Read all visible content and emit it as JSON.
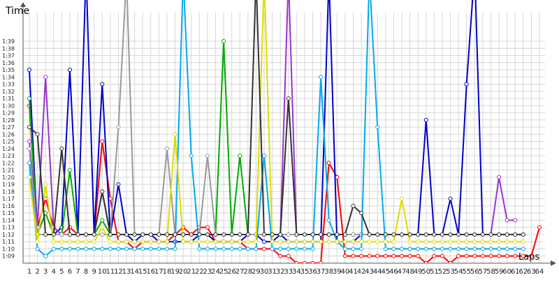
{
  "chart_data": {
    "type": "line",
    "title": "",
    "ylabel": "Time",
    "xlabel": "Laps",
    "grid": true,
    "y_axis": {
      "unit": "lap time (m:ss)",
      "range_seconds": [
        68,
        103
      ],
      "tick_labels": [
        "1:09",
        "1:10",
        "1:11",
        "1:12",
        "1:13",
        "1:14",
        "1:15",
        "1:16",
        "1:17",
        "1:18",
        "1:19",
        "1:20",
        "1:21",
        "1:22",
        "1:23",
        "1:24",
        "1:25",
        "1:26",
        "1:27",
        "1:28",
        "1:29",
        "1:30",
        "1:31",
        "1:32",
        "1:33",
        "1:34",
        "1:35",
        "1:36",
        "1:37",
        "1:38",
        "1:39"
      ]
    },
    "x_axis": {
      "range": [
        1,
        64
      ],
      "tick_labels": [
        "1",
        "2",
        "3",
        "4",
        "5",
        "6",
        "7",
        "8",
        "9",
        "10",
        "11",
        "12",
        "13",
        "14",
        "15",
        "16",
        "17",
        "18",
        "19",
        "20",
        "21",
        "22",
        "23",
        "24",
        "25",
        "26",
        "27",
        "28",
        "29",
        "30",
        "31",
        "32",
        "33",
        "34",
        "35",
        "36",
        "37",
        "38",
        "39",
        "40",
        "41",
        "42",
        "43",
        "44",
        "45",
        "46",
        "47",
        "48",
        "49",
        "50",
        "51",
        "52",
        "53",
        "54",
        "55",
        "56",
        "57",
        "58",
        "59",
        "60",
        "61",
        "62",
        "63",
        "64"
      ]
    },
    "series": [
      {
        "color": "#ff0000",
        "x": [
          1,
          2,
          3,
          4,
          5,
          6,
          7,
          8,
          9,
          10,
          11,
          12,
          13,
          14,
          15,
          16,
          17,
          18,
          19,
          20,
          21,
          22,
          23,
          24,
          25,
          26,
          27,
          28,
          29,
          30,
          31,
          32,
          33,
          34,
          35,
          36,
          37,
          38,
          39,
          40,
          41,
          42,
          43,
          44,
          45,
          46,
          47,
          48,
          49,
          50,
          51,
          52,
          53,
          54,
          55,
          56,
          57,
          58,
          59,
          60,
          61,
          62,
          63,
          64
        ],
        "y": [
          90,
          73,
          77,
          73,
          72,
          73,
          72,
          72,
          72,
          85,
          77,
          71,
          71,
          70,
          71,
          71,
          71,
          71,
          72,
          73,
          72,
          73,
          73,
          71,
          71,
          71,
          71,
          70,
          70,
          70,
          70,
          69,
          69,
          68,
          68,
          68,
          68,
          82,
          80,
          69,
          69,
          69,
          69,
          69,
          69,
          69,
          69,
          69,
          69,
          68,
          69,
          69,
          68,
          69,
          69,
          69,
          69,
          69,
          69,
          69,
          69,
          69,
          69,
          73
        ]
      },
      {
        "color": "#0000cc",
        "x": [
          1,
          2,
          3,
          4,
          5,
          6,
          7,
          8,
          9,
          10,
          11,
          12,
          13,
          14,
          15,
          16,
          17,
          18,
          19,
          20,
          21,
          22,
          23,
          24,
          25,
          26,
          27,
          28,
          29,
          30,
          31,
          32,
          33,
          34,
          35,
          36,
          37,
          38,
          39,
          40,
          41,
          42,
          43,
          44,
          45,
          46,
          47,
          48,
          49,
          50,
          51,
          52,
          53,
          54,
          55,
          56,
          57,
          58,
          59,
          60,
          61,
          62
        ],
        "y": [
          95,
          72,
          72,
          72,
          73,
          95,
          72,
          109,
          72,
          93,
          72,
          79,
          72,
          71,
          72,
          72,
          71,
          71,
          71,
          71,
          71,
          72,
          72,
          71,
          71,
          71,
          71,
          72,
          72,
          71,
          71,
          72,
          71,
          71,
          71,
          71,
          71,
          108,
          71,
          71,
          71,
          72,
          72,
          72,
          72,
          72,
          72,
          72,
          72,
          88,
          72,
          72,
          77,
          72,
          93,
          109,
          72,
          72,
          72,
          72,
          72,
          72
        ]
      },
      {
        "color": "#00aa00",
        "x": [
          1,
          2,
          3,
          4,
          5,
          6,
          7,
          8,
          9,
          10,
          11,
          12,
          13,
          14,
          15,
          16,
          17,
          18,
          19,
          20,
          21,
          22,
          23,
          24,
          25,
          26,
          27,
          28,
          29,
          30,
          31,
          32,
          33,
          34,
          35,
          36,
          37,
          38,
          39,
          40,
          41,
          42,
          43,
          44,
          45,
          46,
          47,
          48,
          49,
          50,
          51,
          52,
          53,
          54,
          55,
          56,
          57,
          58,
          59,
          60,
          61,
          62
        ],
        "y": [
          91,
          72,
          75,
          72,
          72,
          81,
          72,
          72,
          72,
          74,
          72,
          72,
          72,
          72,
          72,
          72,
          72,
          72,
          72,
          72,
          72,
          72,
          72,
          72,
          99,
          72,
          83,
          72,
          72,
          72,
          72,
          72,
          72,
          72,
          72,
          72,
          72,
          72,
          72,
          72,
          72,
          72,
          72,
          72,
          72,
          72,
          72,
          72,
          72,
          72,
          72,
          72,
          72,
          72,
          72,
          72,
          72,
          72,
          72,
          72,
          72,
          72
        ]
      },
      {
        "color": "#9933cc",
        "x": [
          1,
          2,
          3,
          4,
          5,
          6,
          7,
          8,
          9,
          10,
          11,
          12,
          13,
          14,
          15,
          16,
          17,
          18,
          19,
          20,
          21,
          22,
          23,
          24,
          25,
          26,
          27,
          28,
          29,
          30,
          31,
          32,
          33,
          34,
          35,
          36,
          37,
          38,
          39,
          40,
          41,
          42,
          43,
          44,
          45,
          46,
          47,
          48,
          49,
          50,
          51,
          52,
          53,
          54,
          55,
          56,
          57,
          58,
          59,
          60,
          61
        ],
        "y": [
          85,
          73,
          94,
          73,
          72,
          72,
          72,
          72,
          72,
          78,
          72,
          72,
          72,
          72,
          72,
          72,
          72,
          72,
          72,
          72,
          72,
          72,
          72,
          72,
          72,
          72,
          72,
          72,
          72,
          72,
          72,
          72,
          108,
          72,
          72,
          72,
          72,
          72,
          72,
          72,
          72,
          72,
          72,
          72,
          72,
          72,
          72,
          72,
          72,
          72,
          72,
          72,
          72,
          72,
          72,
          72,
          72,
          72,
          80,
          74,
          74
        ]
      },
      {
        "color": "#999999",
        "x": [
          1,
          2,
          3,
          4,
          5,
          6,
          7,
          8,
          9,
          10,
          11,
          12,
          13,
          14,
          15,
          16,
          17,
          18,
          19,
          20,
          21,
          22,
          23,
          24,
          25,
          26,
          27,
          28,
          29,
          30,
          31,
          32,
          33,
          34,
          35,
          36,
          37,
          38,
          39,
          40,
          41,
          42,
          43,
          44,
          45,
          46,
          47,
          48,
          49,
          50,
          51,
          52,
          53,
          54,
          55,
          56,
          57,
          58,
          59,
          60,
          61,
          62
        ],
        "y": [
          84,
          72,
          72,
          72,
          72,
          72,
          72,
          72,
          72,
          72,
          72,
          87,
          108,
          72,
          72,
          72,
          72,
          84,
          72,
          72,
          72,
          72,
          83,
          72,
          72,
          72,
          72,
          72,
          72,
          72,
          72,
          72,
          72,
          72,
          72,
          72,
          72,
          72,
          72,
          72,
          72,
          72,
          72,
          72,
          72,
          72,
          72,
          72,
          72,
          72,
          72,
          72,
          72,
          72,
          72,
          72,
          72,
          72,
          72,
          72,
          72,
          72
        ]
      },
      {
        "color": "#00aaee",
        "x": [
          1,
          2,
          3,
          4,
          5,
          6,
          7,
          8,
          9,
          10,
          11,
          12,
          13,
          14,
          15,
          16,
          17,
          18,
          19,
          20,
          21,
          22,
          23,
          24,
          25,
          26,
          27,
          28,
          29,
          30,
          31,
          32,
          33,
          34,
          35,
          36,
          37,
          38,
          39,
          40,
          41,
          42,
          43,
          44,
          45,
          46,
          47,
          48,
          49,
          50,
          51,
          52,
          53,
          54,
          55,
          56,
          57,
          58,
          59,
          60,
          61,
          62
        ],
        "y": [
          82,
          70,
          69,
          70,
          70,
          70,
          70,
          70,
          70,
          70,
          70,
          70,
          70,
          70,
          70,
          70,
          70,
          70,
          70,
          108,
          83,
          70,
          70,
          70,
          70,
          70,
          70,
          70,
          70,
          83,
          70,
          70,
          70,
          70,
          70,
          70,
          94,
          74,
          71,
          70,
          70,
          70,
          108,
          87,
          70,
          70,
          70,
          70,
          70,
          70,
          70,
          70,
          70,
          70,
          70,
          70,
          70,
          70,
          70,
          70,
          70,
          70
        ]
      },
      {
        "color": "#dddd00",
        "x": [
          1,
          2,
          3,
          4,
          5,
          6,
          7,
          8,
          9,
          10,
          11,
          12,
          13,
          14,
          15,
          16,
          17,
          18,
          19,
          20,
          21,
          22,
          23,
          24,
          25,
          26,
          27,
          28,
          29,
          30,
          31,
          32,
          33,
          34,
          35,
          36,
          37,
          38,
          39,
          40,
          41,
          42,
          43,
          44,
          45,
          46,
          47,
          48,
          49,
          50,
          51,
          52,
          53,
          54,
          55,
          56,
          57,
          58,
          59,
          60,
          61,
          62
        ],
        "y": [
          80,
          71,
          79,
          71,
          71,
          71,
          71,
          71,
          71,
          73,
          71,
          71,
          71,
          71,
          71,
          71,
          71,
          71,
          86,
          71,
          71,
          71,
          71,
          71,
          71,
          71,
          71,
          71,
          71,
          108,
          71,
          71,
          71,
          71,
          71,
          71,
          71,
          71,
          71,
          71,
          71,
          71,
          71,
          71,
          71,
          71,
          77,
          71,
          71,
          71,
          71,
          71,
          71,
          71,
          71,
          71,
          71,
          71,
          71,
          71,
          71,
          71
        ]
      },
      {
        "color": "#333333",
        "x": [
          1,
          2,
          3,
          4,
          5,
          6,
          7,
          8,
          9,
          10,
          11,
          12,
          13,
          14,
          15,
          16,
          17,
          18,
          19,
          20,
          21,
          22,
          23,
          24,
          25,
          26,
          27,
          28,
          29,
          30,
          31,
          32,
          33,
          34,
          35,
          36,
          37,
          38,
          39,
          40,
          41,
          42,
          43,
          44,
          45,
          46,
          47,
          48,
          49,
          50,
          51,
          52,
          53,
          54,
          55,
          56,
          57,
          58,
          59,
          60,
          61,
          62
        ],
        "y": [
          87,
          86,
          72,
          72,
          84,
          72,
          72,
          72,
          72,
          78,
          72,
          72,
          72,
          72,
          72,
          72,
          72,
          72,
          72,
          72,
          72,
          72,
          72,
          72,
          72,
          72,
          72,
          72,
          108,
          72,
          72,
          72,
          91,
          72,
          72,
          72,
          72,
          72,
          72,
          72,
          76,
          75,
          72,
          72,
          72,
          72,
          72,
          72,
          72,
          72,
          72,
          72,
          72,
          72,
          72,
          72,
          72,
          72,
          72,
          72,
          72,
          72
        ]
      }
    ]
  }
}
